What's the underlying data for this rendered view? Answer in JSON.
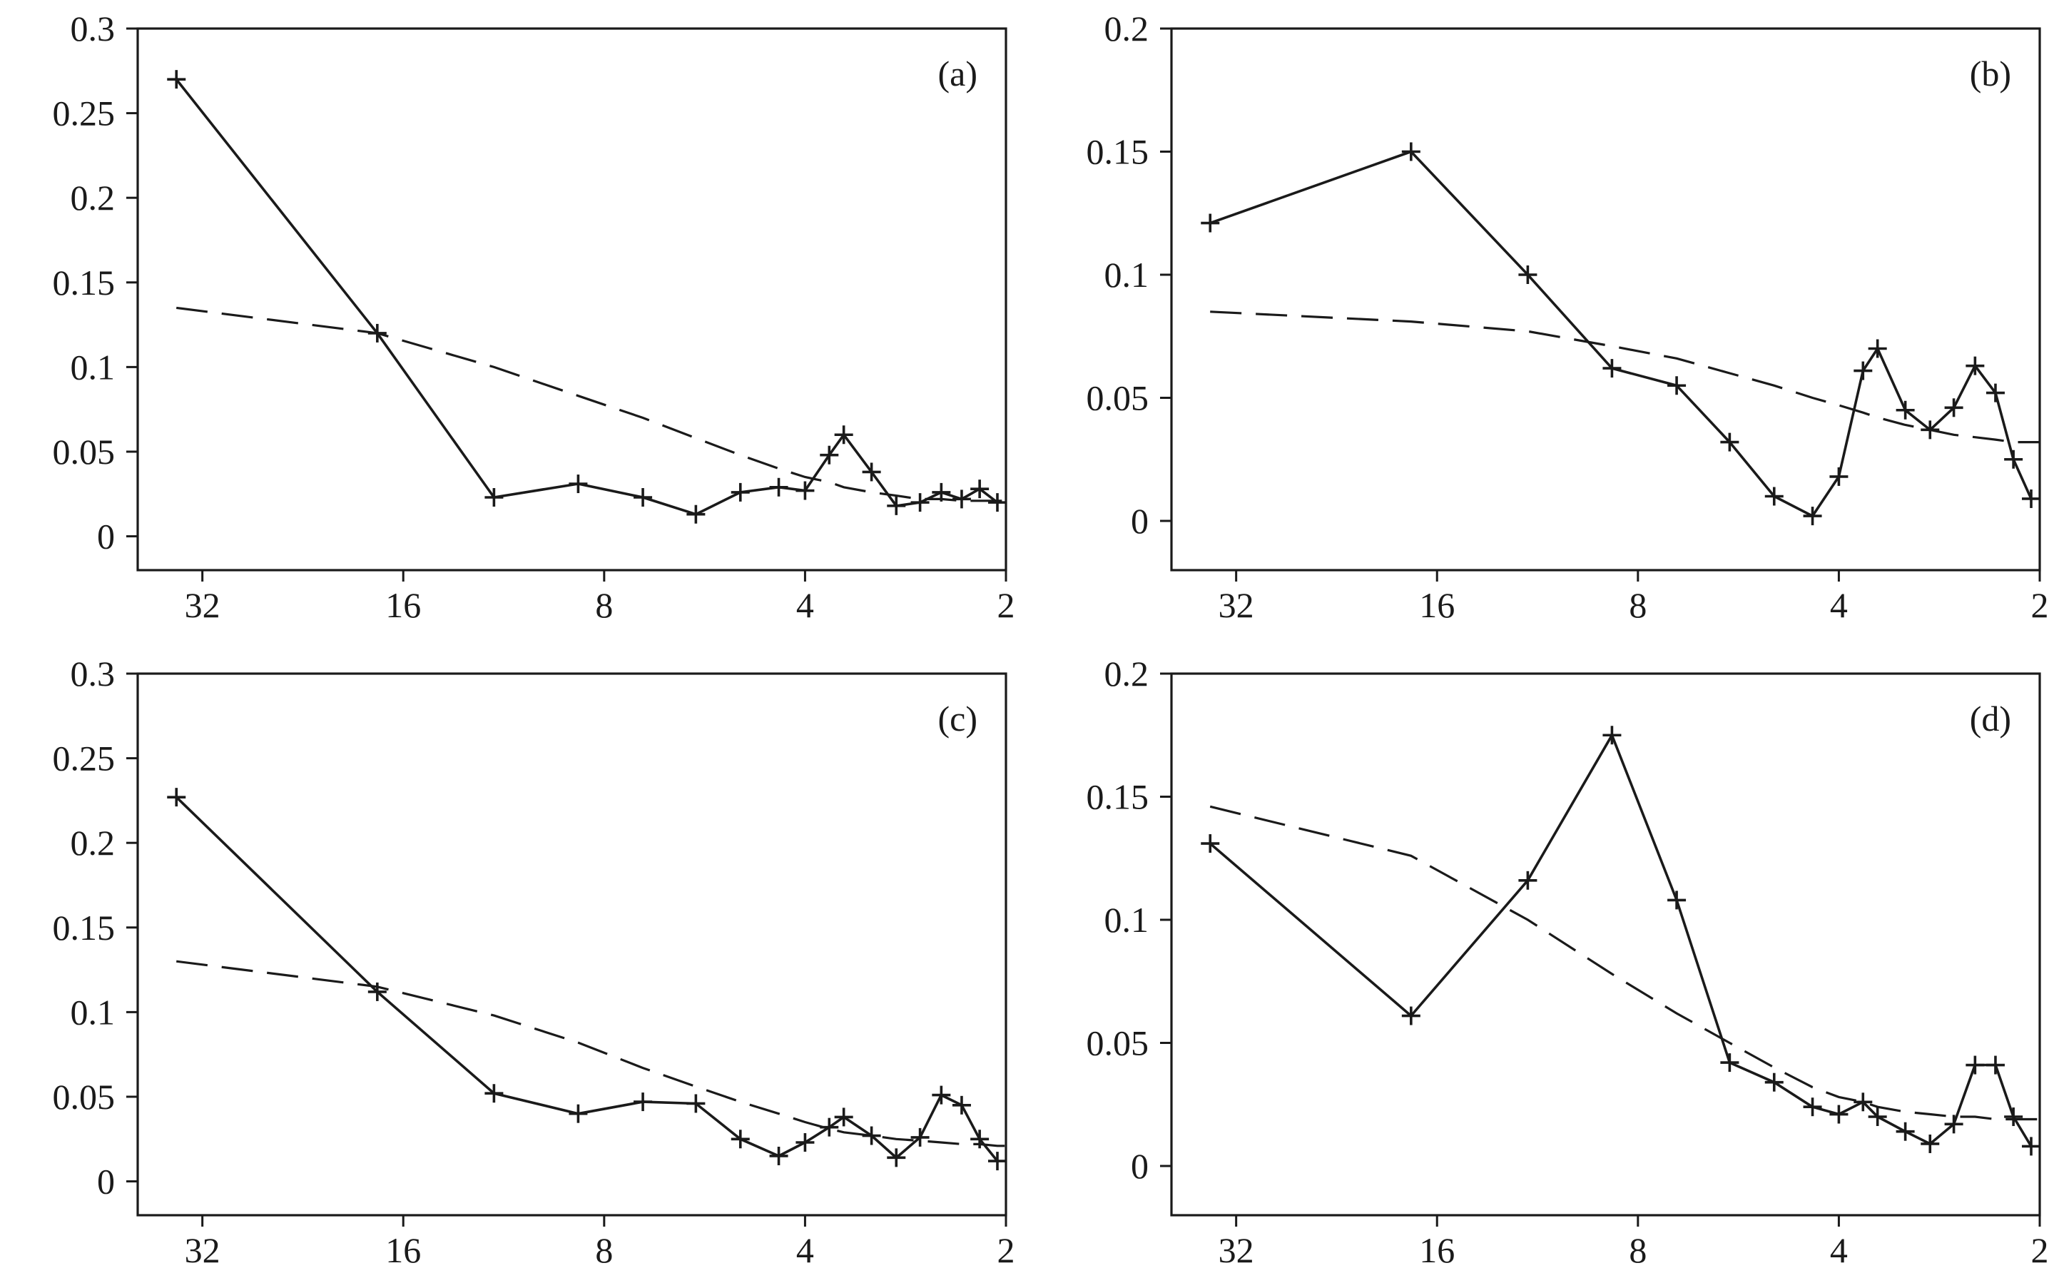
{
  "chart_data": [
    {
      "type": "line",
      "panel_label": "(a)",
      "xscale": "log2",
      "xticks": [
        32,
        16,
        8,
        4,
        2
      ],
      "xtick_labels": [
        "32",
        "16",
        "8",
        "4",
        "2"
      ],
      "xlim": [
        40,
        2
      ],
      "ylim": [
        -0.02,
        0.3
      ],
      "yticks": [
        0,
        0.05,
        0.1,
        0.15,
        0.2,
        0.25,
        0.3
      ],
      "ytick_labels": [
        "0",
        "0.05",
        "0.1",
        "0.15",
        "0.2",
        "0.25",
        "0.3"
      ],
      "series": [
        {
          "style": "solid-with-plus-markers",
          "x": [
            35,
            17.5,
            11.7,
            8.75,
            7,
            5.83,
            5,
            4.38,
            4,
            3.68,
            3.5,
            3.18,
            2.92,
            2.69,
            2.5,
            2.33,
            2.19,
            2.06
          ],
          "y": [
            0.27,
            0.12,
            0.023,
            0.031,
            0.023,
            0.013,
            0.026,
            0.029,
            0.027,
            0.048,
            0.06,
            0.038,
            0.018,
            0.02,
            0.026,
            0.022,
            0.028,
            0.02
          ]
        },
        {
          "style": "dashed",
          "x": [
            35,
            17.5,
            11.7,
            8.75,
            7,
            5.83,
            5,
            4.38,
            4,
            3.68,
            3.5,
            3.18,
            2.92,
            2.69,
            2.5,
            2.33,
            2.19,
            2.06,
            2
          ],
          "y": [
            0.135,
            0.12,
            0.1,
            0.083,
            0.07,
            0.058,
            0.048,
            0.04,
            0.035,
            0.032,
            0.029,
            0.026,
            0.024,
            0.022,
            0.022,
            0.021,
            0.021,
            0.021,
            0.021
          ]
        }
      ]
    },
    {
      "type": "line",
      "panel_label": "(b)",
      "xscale": "log2",
      "xticks": [
        32,
        16,
        8,
        4,
        2
      ],
      "xtick_labels": [
        "32",
        "16",
        "8",
        "4",
        "2"
      ],
      "xlim": [
        40,
        2
      ],
      "ylim": [
        -0.02,
        0.2
      ],
      "yticks": [
        0,
        0.05,
        0.1,
        0.15,
        0.2
      ],
      "ytick_labels": [
        "0",
        "0.05",
        "0.1",
        "0.15",
        "0.2"
      ],
      "series": [
        {
          "style": "solid-with-plus-markers",
          "x": [
            35,
            17.5,
            11.7,
            8.75,
            7,
            5.83,
            5,
            4.38,
            4,
            3.68,
            3.5,
            3.18,
            2.92,
            2.69,
            2.5,
            2.33,
            2.19,
            2.06
          ],
          "y": [
            0.121,
            0.15,
            0.1,
            0.062,
            0.055,
            0.032,
            0.01,
            0.002,
            0.018,
            0.061,
            0.07,
            0.045,
            0.037,
            0.046,
            0.063,
            0.052,
            0.025,
            0.009
          ]
        },
        {
          "style": "dashed",
          "x": [
            35,
            17.5,
            11.7,
            8.75,
            7,
            5.83,
            5,
            4.38,
            4,
            3.68,
            3.5,
            3.18,
            2.92,
            2.69,
            2.5,
            2.33,
            2.19,
            2.06,
            2
          ],
          "y": [
            0.085,
            0.081,
            0.077,
            0.071,
            0.066,
            0.06,
            0.055,
            0.05,
            0.047,
            0.044,
            0.042,
            0.039,
            0.037,
            0.035,
            0.034,
            0.033,
            0.032,
            0.032,
            0.032
          ]
        }
      ]
    },
    {
      "type": "line",
      "panel_label": "(c)",
      "xscale": "log2",
      "xticks": [
        32,
        16,
        8,
        4,
        2
      ],
      "xtick_labels": [
        "32",
        "16",
        "8",
        "4",
        "2"
      ],
      "xlim": [
        40,
        2
      ],
      "ylim": [
        -0.02,
        0.3
      ],
      "yticks": [
        0,
        0.05,
        0.1,
        0.15,
        0.2,
        0.25,
        0.3
      ],
      "ytick_labels": [
        "0",
        "0.05",
        "0.1",
        "0.15",
        "0.2",
        "0.25",
        "0.3"
      ],
      "series": [
        {
          "style": "solid-with-plus-markers",
          "x": [
            35,
            17.5,
            11.7,
            8.75,
            7,
            5.83,
            5,
            4.38,
            4,
            3.68,
            3.5,
            3.18,
            2.92,
            2.69,
            2.5,
            2.33,
            2.19,
            2.06
          ],
          "y": [
            0.227,
            0.112,
            0.052,
            0.04,
            0.047,
            0.046,
            0.025,
            0.015,
            0.023,
            0.032,
            0.038,
            0.027,
            0.014,
            0.026,
            0.051,
            0.045,
            0.025,
            0.012
          ]
        },
        {
          "style": "dashed",
          "x": [
            35,
            17.5,
            11.7,
            8.75,
            7,
            5.83,
            5,
            4.38,
            4,
            3.68,
            3.5,
            3.18,
            2.92,
            2.69,
            2.5,
            2.33,
            2.19,
            2.06,
            2
          ],
          "y": [
            0.13,
            0.115,
            0.098,
            0.082,
            0.067,
            0.056,
            0.047,
            0.04,
            0.035,
            0.031,
            0.029,
            0.027,
            0.025,
            0.024,
            0.023,
            0.022,
            0.022,
            0.021,
            0.021
          ]
        }
      ]
    },
    {
      "type": "line",
      "panel_label": "(d)",
      "xscale": "log2",
      "xticks": [
        32,
        16,
        8,
        4,
        2
      ],
      "xtick_labels": [
        "32",
        "16",
        "8",
        "4",
        "2"
      ],
      "xlim": [
        40,
        2
      ],
      "ylim": [
        -0.02,
        0.2
      ],
      "yticks": [
        0,
        0.05,
        0.1,
        0.15,
        0.2
      ],
      "ytick_labels": [
        "0",
        "0.05",
        "0.1",
        "0.15",
        "0.2"
      ],
      "series": [
        {
          "style": "solid-with-plus-markers",
          "x": [
            35,
            17.5,
            11.7,
            8.75,
            7,
            5.83,
            5,
            4.38,
            4,
            3.68,
            3.5,
            3.18,
            2.92,
            2.69,
            2.5,
            2.33,
            2.19,
            2.06
          ],
          "y": [
            0.131,
            0.061,
            0.116,
            0.175,
            0.108,
            0.042,
            0.034,
            0.024,
            0.021,
            0.026,
            0.02,
            0.014,
            0.009,
            0.017,
            0.041,
            0.041,
            0.02,
            0.008
          ]
        },
        {
          "style": "dashed",
          "x": [
            35,
            17.5,
            11.7,
            8.75,
            7,
            5.83,
            5,
            4.38,
            4,
            3.68,
            3.5,
            3.18,
            2.92,
            2.69,
            2.5,
            2.33,
            2.19,
            2.06,
            2
          ],
          "y": [
            0.146,
            0.126,
            0.1,
            0.078,
            0.062,
            0.05,
            0.04,
            0.032,
            0.028,
            0.026,
            0.024,
            0.022,
            0.021,
            0.02,
            0.02,
            0.019,
            0.019,
            0.019,
            0.019
          ]
        }
      ]
    }
  ]
}
